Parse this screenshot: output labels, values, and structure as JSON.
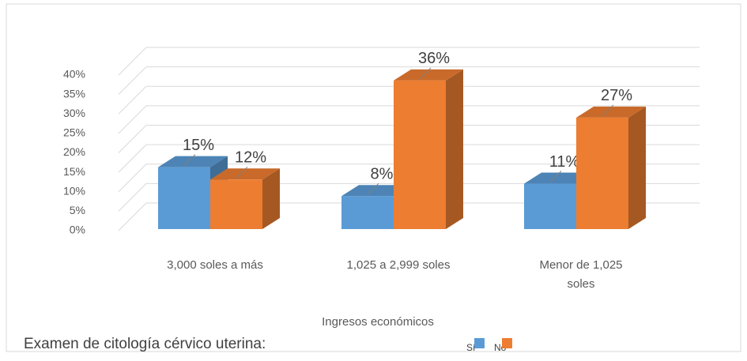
{
  "chart_data": {
    "type": "bar3d",
    "categories": [
      "3,000 soles a más",
      "1,025 a 2,999 soles",
      "Menor de 1,025 soles"
    ],
    "series": [
      {
        "name": "Sí",
        "color": "#5b9bd5",
        "values": [
          15,
          8,
          11
        ],
        "value_labels": [
          "15%",
          "8%",
          "11%"
        ]
      },
      {
        "name": "No",
        "color": "#ed7d31",
        "values": [
          12,
          36,
          27
        ],
        "value_labels": [
          "12%",
          "36%",
          "27%"
        ]
      }
    ],
    "ylim": [
      0,
      40
    ],
    "yticks": [
      {
        "value": 0,
        "label": "0%"
      },
      {
        "value": 5,
        "label": "5%"
      },
      {
        "value": 10,
        "label": "10%"
      },
      {
        "value": 15,
        "label": "15%"
      },
      {
        "value": 20,
        "label": "20%"
      },
      {
        "value": 25,
        "label": "25%"
      },
      {
        "value": 30,
        "label": "30%"
      },
      {
        "value": 35,
        "label": "35%"
      },
      {
        "value": 40,
        "label": "40%"
      }
    ],
    "grid": true,
    "xlabel": "Ingresos económicos",
    "legend_title": "Examen de citología cérvico uterina:",
    "legend": "bottom"
  }
}
